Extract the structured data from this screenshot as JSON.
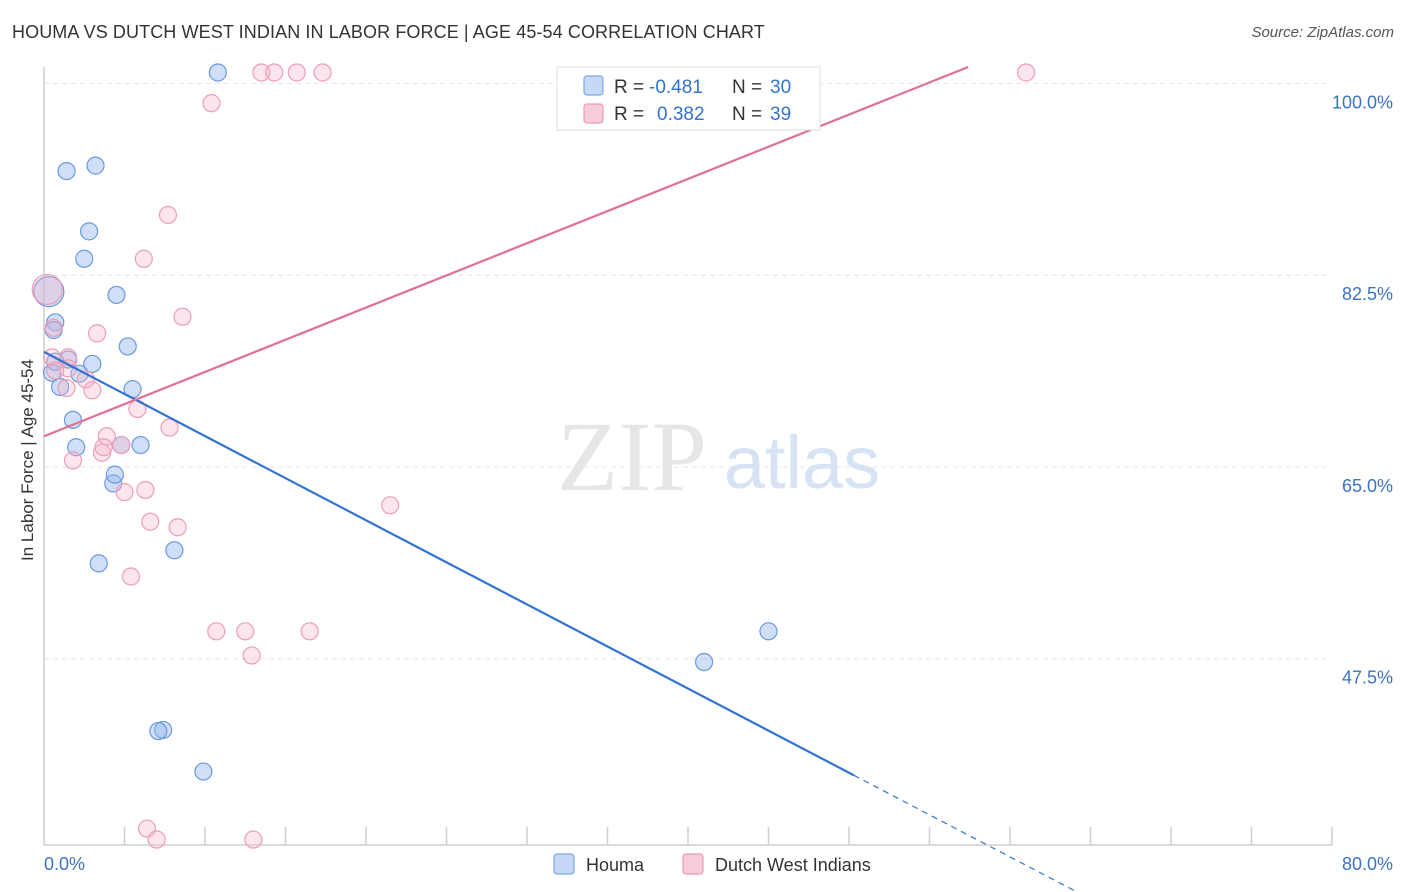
{
  "title": "HOUMA VS DUTCH WEST INDIAN IN LABOR FORCE | AGE 45-54 CORRELATION CHART",
  "source": "Source: ZipAtlas.com",
  "watermark": {
    "zip": "ZIP",
    "atlas": "atlas"
  },
  "chart_data": {
    "type": "scatter",
    "xlabel": "",
    "ylabel": "In Labor Force | Age 45-54",
    "xlim": [
      0,
      80
    ],
    "ylim": [
      30.5,
      101.5
    ],
    "x_tick_labels": [
      "0.0%",
      "80.0%"
    ],
    "y_ticks": [
      47.5,
      65.0,
      82.5,
      100.0
    ],
    "y_tick_labels": [
      "47.5%",
      "65.0%",
      "82.5%",
      "100.0%"
    ],
    "grid": true,
    "legend_position": "top-center",
    "colors": {
      "Houma": "#5b8fe0",
      "Dutch West Indians": "#ee8fae",
      "Houma_line": "#3373d0",
      "Dutch_line": "#e26e95"
    },
    "stats": [
      {
        "series": "Houma",
        "r_label": "R =",
        "r_value": "-0.481",
        "n_label": "N =",
        "n_value": "30"
      },
      {
        "series": "Dutch West Indians",
        "r_label": "R =",
        "r_value": "0.382",
        "n_label": "N =",
        "n_value": "39"
      }
    ],
    "series": [
      {
        "name": "Houma",
        "x": [
          10.8,
          3.2,
          1.4,
          2.8,
          2.5,
          4.5,
          0.3,
          0.7,
          0.6,
          1.5,
          2.2,
          3.0,
          5.2,
          0.5,
          1.0,
          1.8,
          4.8,
          0.7,
          5.5,
          6.0,
          2.0,
          4.3,
          8.1,
          4.4,
          3.4,
          7.4,
          45.0,
          41.0,
          7.1,
          9.9
        ],
        "y": [
          101.0,
          92.5,
          92.0,
          86.5,
          84.0,
          80.7,
          81.0,
          78.2,
          77.5,
          74.8,
          73.5,
          74.4,
          76.0,
          73.6,
          72.3,
          69.3,
          67.0,
          74.6,
          72.1,
          67.0,
          66.8,
          63.5,
          57.4,
          64.3,
          56.2,
          41.0,
          50.0,
          47.2,
          40.9,
          37.2
        ]
      },
      {
        "name": "Dutch West Indians",
        "x": [
          13.5,
          14.3,
          15.7,
          17.3,
          10.4,
          61.0,
          7.7,
          6.2,
          8.6,
          0.2,
          0.6,
          3.3,
          1.5,
          2.6,
          1.4,
          3.0,
          5.8,
          0.5,
          7.8,
          3.9,
          4.8,
          3.6,
          1.8,
          3.7,
          5.0,
          6.3,
          6.6,
          8.3,
          21.5,
          5.4,
          10.7,
          12.5,
          16.5,
          12.9,
          6.4,
          7.0,
          13.0,
          1.5,
          0.7
        ],
        "y": [
          101.0,
          101.0,
          101.0,
          101.0,
          98.2,
          101.0,
          88.0,
          84.0,
          78.7,
          81.2,
          77.7,
          77.2,
          75.0,
          73.0,
          72.2,
          72.0,
          70.3,
          75.0,
          68.6,
          67.8,
          67.0,
          66.3,
          65.6,
          66.8,
          62.7,
          62.9,
          60.0,
          59.5,
          61.5,
          55.0,
          50.0,
          50.0,
          50.0,
          47.8,
          32.0,
          31.0,
          31.0,
          74.0,
          73.8
        ]
      }
    ],
    "trend_lines": [
      {
        "series": "Houma",
        "x_start": 0,
        "y_start": 75.5,
        "x_solid_end": 50.3,
        "x_end": 67.3
      },
      {
        "series": "Dutch West Indians",
        "x_start": 0,
        "y_start": 67.8,
        "x_end": 57.4,
        "y_end": 101.5
      }
    ],
    "legend": [
      "Houma",
      "Dutch West Indians"
    ]
  }
}
